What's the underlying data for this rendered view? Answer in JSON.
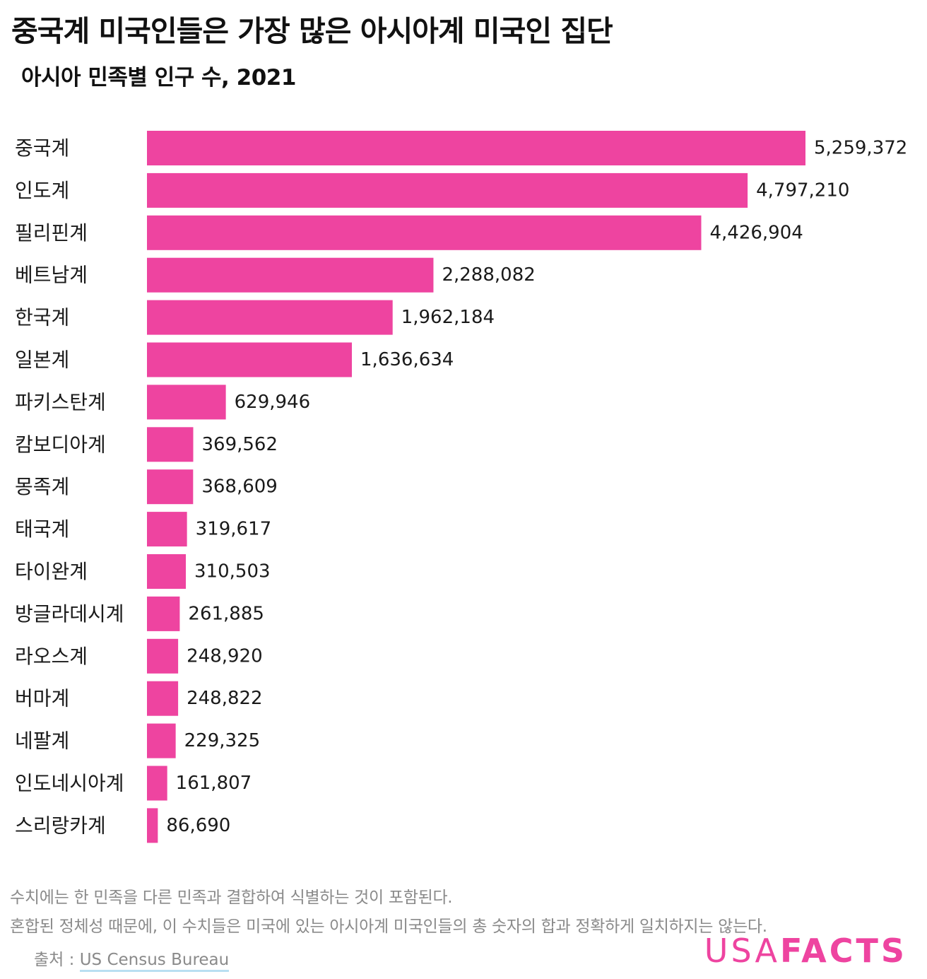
{
  "title": "중국계 미국인들은 가장 많은 아시아계 미국인 집단",
  "subtitle": "아시아 민족별 인구 수, 2021",
  "chart_data": {
    "type": "bar",
    "orientation": "horizontal",
    "categories": [
      "중국계",
      "인도계",
      "필리핀계",
      "베트남계",
      "한국계",
      "일본계",
      "파키스탄계",
      "캄보디아계",
      "몽족계",
      "태국계",
      "타이완계",
      "방글라데시계",
      "라오스계",
      "버마계",
      "네팔계",
      "인도네시아계",
      "스리랑카계"
    ],
    "values": [
      5259372,
      4797210,
      4426904,
      2288082,
      1962184,
      1636634,
      629946,
      369562,
      368609,
      319617,
      310503,
      261885,
      248920,
      248822,
      229325,
      161807,
      86690
    ],
    "value_labels": [
      "5,259,372",
      "4,797,210",
      "4,426,904",
      "2,288,082",
      "1,962,184",
      "1,636,634",
      "629,946",
      "369,562",
      "368,609",
      "319,617",
      "310,503",
      "261,885",
      "248,920",
      "248,822",
      "229,325",
      "161,807",
      "86,690"
    ],
    "xlim": [
      0,
      5259372
    ],
    "grid": false,
    "legend": "none",
    "bar_color": "#ee44a0"
  },
  "notes": [
    "수치에는 한 민족을 다른 민족과 결합하여 식별하는 것이 포함된다.",
    "혼합된 정체성 때문에, 이 수치들은 미국에 있는 아시아계 미국인들의 총 숫자의 합과 정확하게 일치하지는 않는다."
  ],
  "source": {
    "label": "출처 :",
    "link_text": "US Census Bureau",
    "underline_color": "#b9dff2"
  },
  "logo": {
    "usa": "USA",
    "facts": "FACTS",
    "color": "#ee44a0"
  }
}
